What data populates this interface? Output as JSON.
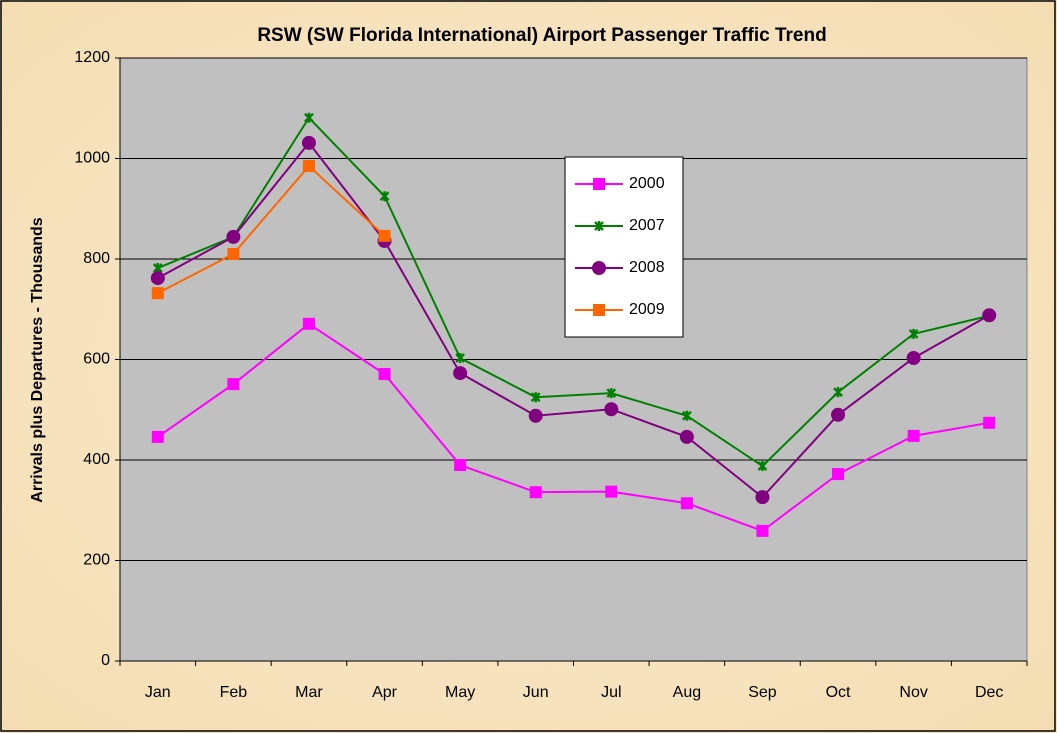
{
  "chart_data": {
    "type": "line",
    "title": "RSW (SW Florida International) Airport Passenger Traffic Trend",
    "y_label": "Arrivals plus Departures - Thousands",
    "categories": [
      "Jan",
      "Feb",
      "Mar",
      "Apr",
      "May",
      "Jun",
      "Jul",
      "Aug",
      "Sep",
      "Oct",
      "Nov",
      "Dec"
    ],
    "series": [
      {
        "name": "2000",
        "color": "#ff00ff",
        "marker": "square",
        "values": [
          446,
          551,
          671,
          571,
          390,
          336,
          337,
          314,
          259,
          372,
          448,
          474
        ]
      },
      {
        "name": "2007",
        "color": "#008000",
        "marker": "star",
        "values": [
          782,
          844,
          1081,
          925,
          603,
          525,
          533,
          488,
          388,
          535,
          651,
          687
        ]
      },
      {
        "name": "2008",
        "color": "#800080",
        "marker": "circle",
        "values": [
          762,
          844,
          1031,
          836,
          573,
          488,
          501,
          446,
          326,
          490,
          603,
          688
        ]
      },
      {
        "name": "2009",
        "color": "#ff6600",
        "marker": "square",
        "values": [
          732,
          810,
          985,
          846,
          null,
          null,
          null,
          null,
          null,
          null,
          null,
          null
        ]
      }
    ],
    "ylim": [
      0,
      1200
    ],
    "yticks": [
      0,
      200,
      400,
      600,
      800,
      1000,
      1200
    ],
    "grid": true,
    "plot_background": "#c0c0c0"
  }
}
